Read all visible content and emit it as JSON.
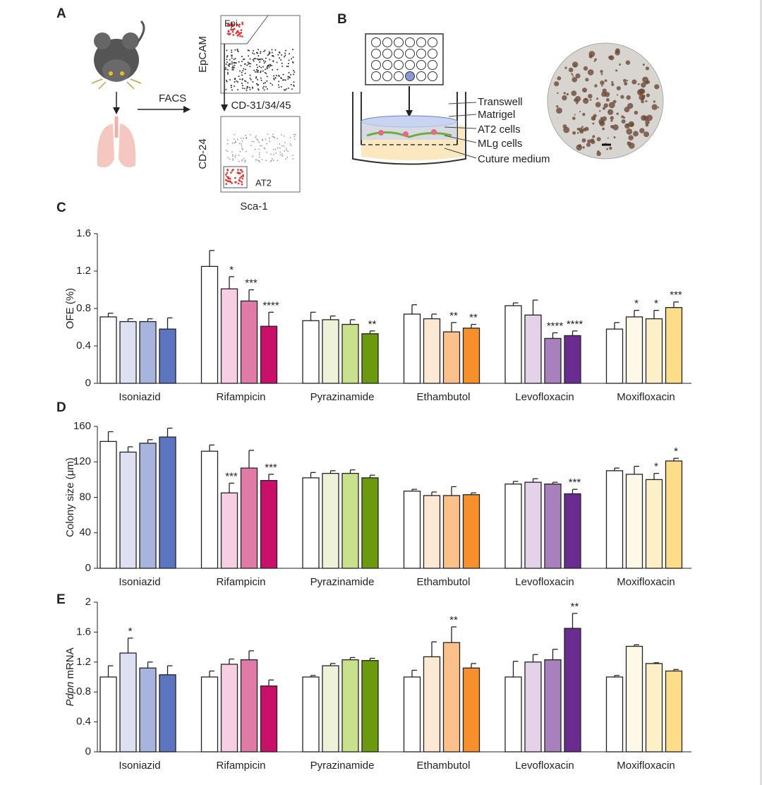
{
  "panels": {
    "A": {
      "letter": "A",
      "facs": "FACS",
      "gate1": "Epi",
      "y1": "EpCAM",
      "x1": "CD-31/34/45",
      "y2": "CD-24",
      "gate2": "AT2",
      "x2": "Sca-1"
    },
    "B": {
      "letter": "B",
      "labels": [
        "Transwell",
        "Matrigel",
        "AT2 cells",
        "MLg cells",
        "Cuture medium"
      ]
    }
  },
  "chart_data": [
    {
      "type": "bar",
      "panel": "C",
      "ylabel": "OFE (%)",
      "ylim": [
        0,
        1.6
      ],
      "yticks": [
        0,
        0.4,
        0.8,
        1.2,
        1.6
      ],
      "categories": [
        "Isoniazid",
        "Rifampicin",
        "Pyrazinamide",
        "Ethambutol",
        "Levofloxacin",
        "Moxifloxacin"
      ],
      "colors": [
        [
          "#ffffff",
          "#dde0f0",
          "#a7b4dd",
          "#5b75c0"
        ],
        [
          "#ffffff",
          "#f6cfe3",
          "#e07ba8",
          "#c8106a"
        ],
        [
          "#ffffff",
          "#eef2d8",
          "#c9e08c",
          "#6b9a0e"
        ],
        [
          "#ffffff",
          "#fde8d4",
          "#fcc08a",
          "#f7902a"
        ],
        [
          "#ffffff",
          "#e4d2e8",
          "#a880bb",
          "#6a2d8f"
        ],
        [
          "#ffffff",
          "#fdf8e8",
          "#fdf0c8",
          "#fddc8a"
        ]
      ],
      "series": [
        {
          "values": [
            0.71,
            1.25,
            0.67,
            0.74,
            0.83,
            0.58
          ],
          "errors": [
            0.04,
            0.17,
            0.09,
            0.1,
            0.03,
            0.07
          ],
          "annotations": [
            null,
            null,
            null,
            null,
            null,
            null
          ]
        },
        {
          "values": [
            0.66,
            1.01,
            0.68,
            0.69,
            0.73,
            0.71
          ],
          "errors": [
            0.03,
            0.13,
            0.04,
            0.05,
            0.16,
            0.07
          ],
          "annotations": [
            null,
            "*",
            null,
            null,
            null,
            "*"
          ]
        },
        {
          "values": [
            0.66,
            0.88,
            0.63,
            0.55,
            0.48,
            0.69
          ],
          "errors": [
            0.03,
            0.12,
            0.05,
            0.1,
            0.06,
            0.09
          ],
          "annotations": [
            null,
            "***",
            null,
            "**",
            "****",
            "*"
          ]
        },
        {
          "values": [
            0.58,
            0.61,
            0.53,
            0.59,
            0.51,
            0.81
          ],
          "errors": [
            0.12,
            0.15,
            0.03,
            0.04,
            0.05,
            0.06
          ],
          "annotations": [
            null,
            "****",
            "**",
            "**",
            "****",
            "***"
          ]
        }
      ]
    },
    {
      "type": "bar",
      "panel": "D",
      "ylabel": "Colony size (μm)",
      "ylim": [
        0,
        160
      ],
      "yticks": [
        0,
        40,
        80,
        120,
        160
      ],
      "categories": [
        "Isoniazid",
        "Rifampicin",
        "Pyrazinamide",
        "Ethambutol",
        "Levofloxacin",
        "Moxifloxacin"
      ],
      "colors": [
        [
          "#ffffff",
          "#dde0f0",
          "#a7b4dd",
          "#5b75c0"
        ],
        [
          "#ffffff",
          "#f6cfe3",
          "#e07ba8",
          "#c8106a"
        ],
        [
          "#ffffff",
          "#eef2d8",
          "#c9e08c",
          "#6b9a0e"
        ],
        [
          "#ffffff",
          "#fde8d4",
          "#fcc08a",
          "#f7902a"
        ],
        [
          "#ffffff",
          "#e4d2e8",
          "#a880bb",
          "#6a2d8f"
        ],
        [
          "#ffffff",
          "#fdf8e8",
          "#fdf0c8",
          "#fddc8a"
        ]
      ],
      "series": [
        {
          "values": [
            143,
            132,
            102,
            87,
            95,
            110
          ],
          "errors": [
            11,
            7,
            6,
            2,
            3,
            3
          ],
          "annotations": [
            null,
            null,
            null,
            null,
            null,
            null
          ]
        },
        {
          "values": [
            131,
            85,
            107,
            82,
            97,
            106
          ],
          "errors": [
            6,
            11,
            3,
            4,
            4,
            9
          ],
          "annotations": [
            null,
            "***",
            null,
            null,
            null,
            null
          ]
        },
        {
          "values": [
            141,
            113,
            107,
            82,
            95,
            100
          ],
          "errors": [
            4,
            20,
            4,
            10,
            2,
            7
          ],
          "annotations": [
            null,
            null,
            null,
            null,
            null,
            "*"
          ]
        },
        {
          "values": [
            148,
            99,
            102,
            83,
            84,
            121
          ],
          "errors": [
            10,
            7,
            3,
            2,
            5,
            3
          ],
          "annotations": [
            null,
            "***",
            null,
            null,
            "***",
            "*"
          ]
        }
      ]
    },
    {
      "type": "bar",
      "panel": "E",
      "ylabel_italic": "Pdpn",
      "ylabel": "mRNA",
      "ylim": [
        0,
        2
      ],
      "yticks": [
        0,
        0.4,
        0.8,
        1.2,
        1.6,
        2
      ],
      "categories": [
        "Isoniazid",
        "Rifampicin",
        "Pyrazinamide",
        "Ethambutol",
        "Levofloxacin",
        "Moxifloxacin"
      ],
      "colors": [
        [
          "#ffffff",
          "#dde0f0",
          "#a7b4dd",
          "#5b75c0"
        ],
        [
          "#ffffff",
          "#f6cfe3",
          "#e07ba8",
          "#c8106a"
        ],
        [
          "#ffffff",
          "#eef2d8",
          "#c9e08c",
          "#6b9a0e"
        ],
        [
          "#ffffff",
          "#fde8d4",
          "#fcc08a",
          "#f7902a"
        ],
        [
          "#ffffff",
          "#e4d2e8",
          "#a880bb",
          "#6a2d8f"
        ],
        [
          "#ffffff",
          "#fdf8e8",
          "#fdf0c8",
          "#fddc8a"
        ]
      ],
      "series": [
        {
          "values": [
            1.0,
            1.0,
            1.0,
            1.0,
            1.0,
            1.0
          ],
          "errors": [
            0.15,
            0.08,
            0.02,
            0.09,
            0.21,
            0.02
          ],
          "annotations": [
            null,
            null,
            null,
            null,
            null,
            null
          ]
        },
        {
          "values": [
            1.32,
            1.17,
            1.15,
            1.27,
            1.2,
            1.41
          ],
          "errors": [
            0.2,
            0.07,
            0.03,
            0.2,
            0.1,
            0.02
          ],
          "annotations": [
            "*",
            null,
            null,
            null,
            null,
            null
          ]
        },
        {
          "values": [
            1.12,
            1.23,
            1.23,
            1.46,
            1.23,
            1.18
          ],
          "errors": [
            0.08,
            0.12,
            0.03,
            0.21,
            0.14,
            0.01
          ],
          "annotations": [
            null,
            null,
            null,
            "**",
            null,
            null
          ]
        },
        {
          "values": [
            1.03,
            0.88,
            1.22,
            1.12,
            1.65,
            1.08
          ],
          "errors": [
            0.12,
            0.08,
            0.03,
            0.06,
            0.2,
            0.02
          ],
          "annotations": [
            null,
            null,
            null,
            null,
            "**",
            null
          ]
        }
      ]
    }
  ]
}
